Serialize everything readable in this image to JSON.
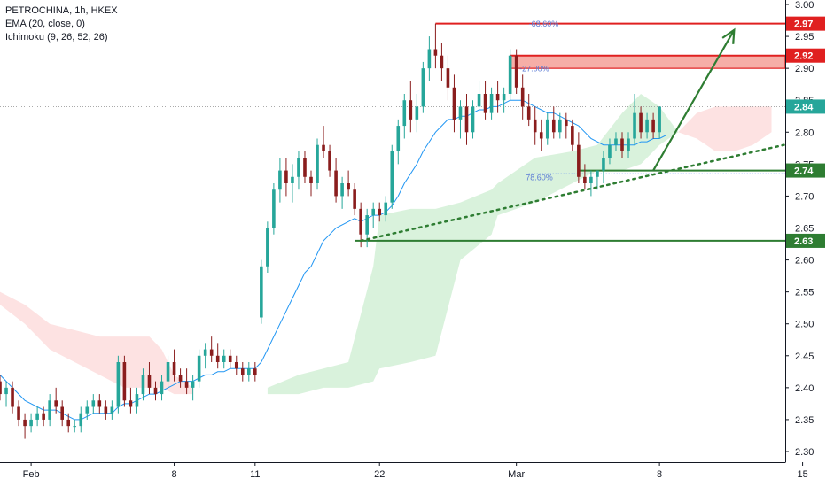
{
  "legend": {
    "symbol_line": "PETROCHINA, 1h, HKEX",
    "ema_line": "EMA (20, close, 0)",
    "ichimoku_line": "Ichimoku (9, 26, 52, 26)"
  },
  "colors": {
    "up": "#26a69a",
    "down": "#8a1d1d",
    "ema": "#2196f3",
    "cloud_green": "#d9f2dc",
    "cloud_red": "#fde2e2",
    "resistance": "#e02020",
    "support": "#2e7d32"
  },
  "chart_data": {
    "type": "candlestick",
    "y_ticks": [
      "2.30",
      "2.35",
      "2.40",
      "2.45",
      "2.50",
      "2.55",
      "2.60",
      "2.65",
      "2.70",
      "2.75",
      "2.80",
      "2.85",
      "2.90",
      "2.95",
      "3.00"
    ],
    "x_ticks": [
      {
        "label": "Feb",
        "idx": 5
      },
      {
        "label": "8",
        "idx": 28
      },
      {
        "label": "11",
        "idx": 41
      },
      {
        "label": "22",
        "idx": 61
      },
      {
        "label": "Mar",
        "idx": 83
      },
      {
        "label": "8",
        "idx": 106
      },
      {
        "label": "15",
        "idx": 129
      }
    ],
    "ylim": [
      2.28,
      3.01
    ],
    "candles": [
      [
        2.41,
        2.42,
        2.38,
        2.39
      ],
      [
        2.39,
        2.41,
        2.37,
        2.4
      ],
      [
        2.4,
        2.41,
        2.36,
        2.37
      ],
      [
        2.37,
        2.38,
        2.34,
        2.35
      ],
      [
        2.35,
        2.36,
        2.32,
        2.34
      ],
      [
        2.34,
        2.36,
        2.33,
        2.35
      ],
      [
        2.35,
        2.37,
        2.34,
        2.36
      ],
      [
        2.36,
        2.37,
        2.34,
        2.35
      ],
      [
        2.35,
        2.39,
        2.34,
        2.38
      ],
      [
        2.38,
        2.4,
        2.36,
        2.37
      ],
      [
        2.37,
        2.38,
        2.34,
        2.35
      ],
      [
        2.35,
        2.36,
        2.33,
        2.34
      ],
      [
        2.34,
        2.35,
        2.33,
        2.34
      ],
      [
        2.34,
        2.37,
        2.33,
        2.36
      ],
      [
        2.36,
        2.38,
        2.35,
        2.37
      ],
      [
        2.37,
        2.39,
        2.36,
        2.38
      ],
      [
        2.38,
        2.39,
        2.36,
        2.37
      ],
      [
        2.37,
        2.38,
        2.35,
        2.36
      ],
      [
        2.36,
        2.38,
        2.35,
        2.37
      ],
      [
        2.37,
        2.45,
        2.36,
        2.44
      ],
      [
        2.44,
        2.45,
        2.37,
        2.38
      ],
      [
        2.38,
        2.4,
        2.36,
        2.37
      ],
      [
        2.37,
        2.4,
        2.36,
        2.39
      ],
      [
        2.39,
        2.43,
        2.38,
        2.42
      ],
      [
        2.42,
        2.44,
        2.39,
        2.4
      ],
      [
        2.4,
        2.41,
        2.38,
        2.39
      ],
      [
        2.39,
        2.42,
        2.38,
        2.41
      ],
      [
        2.41,
        2.45,
        2.4,
        2.44
      ],
      [
        2.44,
        2.46,
        2.41,
        2.42
      ],
      [
        2.42,
        2.43,
        2.4,
        2.41
      ],
      [
        2.41,
        2.43,
        2.39,
        2.4
      ],
      [
        2.4,
        2.42,
        2.38,
        2.41
      ],
      [
        2.41,
        2.46,
        2.4,
        2.45
      ],
      [
        2.45,
        2.47,
        2.43,
        2.46
      ],
      [
        2.46,
        2.48,
        2.44,
        2.45
      ],
      [
        2.45,
        2.47,
        2.43,
        2.44
      ],
      [
        2.44,
        2.46,
        2.43,
        2.45
      ],
      [
        2.45,
        2.46,
        2.43,
        2.44
      ],
      [
        2.44,
        2.45,
        2.42,
        2.43
      ],
      [
        2.43,
        2.44,
        2.41,
        2.42
      ],
      [
        2.42,
        2.44,
        2.41,
        2.43
      ],
      [
        2.43,
        2.44,
        2.41,
        2.42
      ],
      [
        2.51,
        2.6,
        2.5,
        2.59
      ],
      [
        2.59,
        2.66,
        2.58,
        2.65
      ],
      [
        2.65,
        2.72,
        2.64,
        2.71
      ],
      [
        2.71,
        2.76,
        2.69,
        2.74
      ],
      [
        2.74,
        2.76,
        2.7,
        2.72
      ],
      [
        2.72,
        2.75,
        2.69,
        2.73
      ],
      [
        2.73,
        2.77,
        2.71,
        2.76
      ],
      [
        2.76,
        2.77,
        2.72,
        2.73
      ],
      [
        2.73,
        2.74,
        2.7,
        2.72
      ],
      [
        2.72,
        2.79,
        2.71,
        2.78
      ],
      [
        2.78,
        2.81,
        2.76,
        2.77
      ],
      [
        2.77,
        2.78,
        2.73,
        2.74
      ],
      [
        2.74,
        2.76,
        2.69,
        2.7
      ],
      [
        2.7,
        2.73,
        2.68,
        2.72
      ],
      [
        2.72,
        2.74,
        2.7,
        2.71
      ],
      [
        2.71,
        2.72,
        2.67,
        2.68
      ],
      [
        2.68,
        2.69,
        2.62,
        2.64
      ],
      [
        2.64,
        2.68,
        2.62,
        2.67
      ],
      [
        2.67,
        2.69,
        2.65,
        2.68
      ],
      [
        2.68,
        2.69,
        2.66,
        2.67
      ],
      [
        2.67,
        2.7,
        2.66,
        2.69
      ],
      [
        2.69,
        2.78,
        2.68,
        2.77
      ],
      [
        2.77,
        2.82,
        2.75,
        2.81
      ],
      [
        2.81,
        2.86,
        2.79,
        2.85
      ],
      [
        2.85,
        2.88,
        2.8,
        2.82
      ],
      [
        2.82,
        2.86,
        2.8,
        2.84
      ],
      [
        2.84,
        2.91,
        2.83,
        2.9
      ],
      [
        2.9,
        2.95,
        2.88,
        2.93
      ],
      [
        2.93,
        2.97,
        2.9,
        2.92
      ],
      [
        2.92,
        2.94,
        2.88,
        2.9
      ],
      [
        2.9,
        2.92,
        2.85,
        2.87
      ],
      [
        2.87,
        2.89,
        2.8,
        2.82
      ],
      [
        2.82,
        2.85,
        2.79,
        2.84
      ],
      [
        2.84,
        2.86,
        2.78,
        2.8
      ],
      [
        2.8,
        2.85,
        2.79,
        2.84
      ],
      [
        2.84,
        2.88,
        2.83,
        2.86
      ],
      [
        2.86,
        2.88,
        2.82,
        2.83
      ],
      [
        2.83,
        2.87,
        2.82,
        2.86
      ],
      [
        2.86,
        2.88,
        2.83,
        2.85
      ],
      [
        2.85,
        2.87,
        2.83,
        2.86
      ],
      [
        2.86,
        2.93,
        2.85,
        2.92
      ],
      [
        2.92,
        2.93,
        2.86,
        2.87
      ],
      [
        2.87,
        2.89,
        2.82,
        2.84
      ],
      [
        2.84,
        2.86,
        2.81,
        2.82
      ],
      [
        2.82,
        2.84,
        2.78,
        2.8
      ],
      [
        2.8,
        2.82,
        2.77,
        2.79
      ],
      [
        2.79,
        2.83,
        2.78,
        2.82
      ],
      [
        2.82,
        2.84,
        2.79,
        2.8
      ],
      [
        2.8,
        2.83,
        2.79,
        2.82
      ],
      [
        2.82,
        2.83,
        2.79,
        2.81
      ],
      [
        2.81,
        2.82,
        2.77,
        2.78
      ],
      [
        2.78,
        2.8,
        2.72,
        2.73
      ],
      [
        2.73,
        2.75,
        2.71,
        2.72
      ],
      [
        2.72,
        2.74,
        2.7,
        2.73
      ],
      [
        2.73,
        2.74,
        2.71,
        2.74
      ],
      [
        2.74,
        2.77,
        2.72,
        2.76
      ],
      [
        2.76,
        2.79,
        2.75,
        2.78
      ],
      [
        2.78,
        2.8,
        2.77,
        2.79
      ],
      [
        2.79,
        2.8,
        2.76,
        2.77
      ],
      [
        2.77,
        2.8,
        2.76,
        2.79
      ],
      [
        2.79,
        2.86,
        2.78,
        2.83
      ],
      [
        2.83,
        2.84,
        2.79,
        2.8
      ],
      [
        2.8,
        2.83,
        2.79,
        2.82
      ],
      [
        2.82,
        2.83,
        2.79,
        2.8
      ],
      [
        2.8,
        2.84,
        2.79,
        2.84
      ]
    ],
    "ema": [
      2.42,
      2.41,
      2.4,
      2.39,
      2.38,
      2.375,
      2.37,
      2.365,
      2.365,
      2.365,
      2.36,
      2.355,
      2.35,
      2.35,
      2.355,
      2.36,
      2.36,
      2.36,
      2.36,
      2.37,
      2.375,
      2.375,
      2.38,
      2.385,
      2.39,
      2.39,
      2.395,
      2.4,
      2.405,
      2.41,
      2.41,
      2.41,
      2.415,
      2.42,
      2.42,
      2.425,
      2.425,
      2.43,
      2.43,
      2.43,
      2.43,
      2.43,
      2.44,
      2.46,
      2.48,
      2.5,
      2.52,
      2.54,
      2.56,
      2.58,
      2.59,
      2.61,
      2.63,
      2.64,
      2.65,
      2.655,
      2.66,
      2.665,
      2.66,
      2.665,
      2.67,
      2.67,
      2.675,
      2.685,
      2.7,
      2.72,
      2.735,
      2.75,
      2.77,
      2.785,
      2.8,
      2.81,
      2.82,
      2.82,
      2.825,
      2.825,
      2.83,
      2.835,
      2.835,
      2.84,
      2.84,
      2.845,
      2.85,
      2.85,
      2.85,
      2.845,
      2.84,
      2.835,
      2.83,
      2.83,
      2.825,
      2.82,
      2.815,
      2.81,
      2.8,
      2.79,
      2.785,
      2.78,
      2.78,
      2.78,
      2.78,
      2.78,
      2.78,
      2.785,
      2.785,
      2.79,
      2.79,
      2.795
    ],
    "cloud_red": {
      "x": [
        0,
        4,
        8,
        12,
        16,
        20,
        24,
        26,
        28,
        31
      ],
      "top": [
        2.55,
        2.53,
        2.5,
        2.49,
        2.48,
        2.48,
        2.48,
        2.46,
        2.42,
        2.4
      ],
      "bot": [
        2.53,
        2.5,
        2.46,
        2.44,
        2.42,
        2.4,
        2.4,
        2.4,
        2.39,
        2.39
      ]
    },
    "cloud_red2": {
      "x": [
        109,
        112,
        115,
        118,
        121,
        124
      ],
      "top": [
        2.8,
        2.83,
        2.84,
        2.84,
        2.84,
        2.84
      ],
      "bot": [
        2.8,
        2.79,
        2.77,
        2.77,
        2.78,
        2.8
      ]
    },
    "cloud_green": {
      "x": [
        43,
        48,
        52,
        56,
        60,
        61,
        66,
        70,
        74,
        79,
        80,
        86,
        92,
        96,
        100,
        103,
        106,
        109
      ],
      "top": [
        2.4,
        2.42,
        2.43,
        2.44,
        2.59,
        2.67,
        2.68,
        2.68,
        2.69,
        2.71,
        2.72,
        2.76,
        2.77,
        2.78,
        2.83,
        2.86,
        2.84,
        2.8
      ],
      "bot": [
        2.39,
        2.39,
        2.4,
        2.4,
        2.41,
        2.43,
        2.44,
        2.45,
        2.6,
        2.64,
        2.67,
        2.69,
        2.72,
        2.74,
        2.74,
        2.75,
        2.78,
        2.8
      ]
    },
    "levels": [
      {
        "price": 2.97,
        "label": "2.97",
        "color": "#e02020",
        "from_idx": 70
      },
      {
        "price": 2.92,
        "label": "2.92",
        "color": "#e02020",
        "from_idx": 82,
        "zone_bottom": 2.9
      },
      {
        "price": 2.84,
        "label": "2.84",
        "color": "#26a69a",
        "from_idx": 0,
        "dotted": true
      },
      {
        "price": 2.74,
        "label": "2.74",
        "color": "#2e7d32",
        "from_idx": 93
      },
      {
        "price": 2.63,
        "label": "2.63",
        "color": "#2e7d32",
        "from_idx": 57
      }
    ],
    "fib": [
      {
        "price": 2.97,
        "label": "-68.60%",
        "idx": 85
      },
      {
        "price": 2.9,
        "label": "-27.00%",
        "idx": 83.5
      },
      {
        "price": 2.73,
        "label": "78.60%",
        "idx": 84.5
      }
    ],
    "trendline": {
      "x1": 58,
      "y1": 2.63,
      "x2": 126,
      "y2": 2.78
    },
    "arrow": {
      "x1": 105,
      "y1": 2.74,
      "x2": 118,
      "y2": 2.96
    }
  }
}
